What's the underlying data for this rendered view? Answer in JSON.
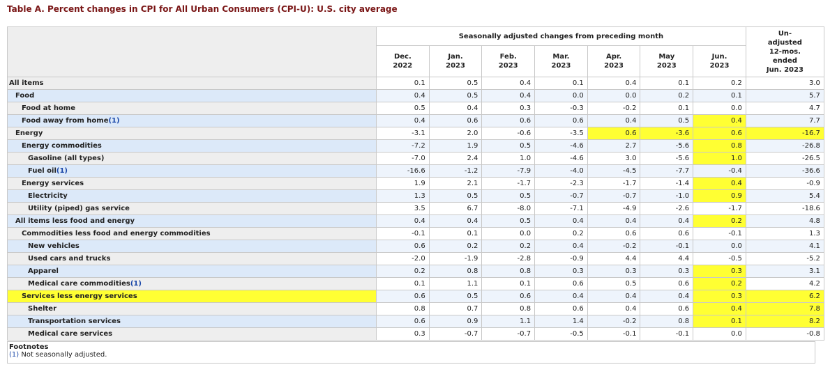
{
  "title": "Table A. Percent changes in CPI for All Urban Consumers (CPI-U): U.S. city average",
  "table": {
    "group_header": "Seasonally adjusted changes from preceding month",
    "columns": [
      {
        "month": "Dec.",
        "year": "2022"
      },
      {
        "month": "Jan.",
        "year": "2023"
      },
      {
        "month": "Feb.",
        "year": "2023"
      },
      {
        "month": "Mar.",
        "year": "2023"
      },
      {
        "month": "Apr.",
        "year": "2023"
      },
      {
        "month": "May",
        "year": "2023"
      },
      {
        "month": "Jun.",
        "year": "2023"
      }
    ],
    "annual_header": [
      "Un-",
      "adjusted",
      "12-mos.",
      "ended",
      "Jun. 2023"
    ],
    "rows": [
      {
        "label": "All items",
        "values": [
          "0.1",
          "0.5",
          "0.4",
          "0.1",
          "0.4",
          "0.1",
          "0.2",
          "3.0"
        ]
      },
      {
        "label": "Food",
        "values": [
          "0.4",
          "0.5",
          "0.4",
          "0.0",
          "0.0",
          "0.2",
          "0.1",
          "5.7"
        ]
      },
      {
        "label": "Food at home",
        "values": [
          "0.5",
          "0.4",
          "0.3",
          "-0.3",
          "-0.2",
          "0.1",
          "0.0",
          "4.7"
        ]
      },
      {
        "label": "Food away from home",
        "note": "(1)",
        "values": [
          "0.4",
          "0.6",
          "0.6",
          "0.6",
          "0.4",
          "0.5",
          "0.4",
          "7.7"
        ]
      },
      {
        "label": "Energy",
        "values": [
          "-3.1",
          "2.0",
          "-0.6",
          "-3.5",
          "0.6",
          "-3.6",
          "0.6",
          "-16.7"
        ]
      },
      {
        "label": "Energy commodities",
        "values": [
          "-7.2",
          "1.9",
          "0.5",
          "-4.6",
          "2.7",
          "-5.6",
          "0.8",
          "-26.8"
        ]
      },
      {
        "label": "Gasoline (all types)",
        "values": [
          "-7.0",
          "2.4",
          "1.0",
          "-4.6",
          "3.0",
          "-5.6",
          "1.0",
          "-26.5"
        ]
      },
      {
        "label": "Fuel oil",
        "note": "(1)",
        "values": [
          "-16.6",
          "-1.2",
          "-7.9",
          "-4.0",
          "-4.5",
          "-7.7",
          "-0.4",
          "-36.6"
        ]
      },
      {
        "label": "Energy services",
        "values": [
          "1.9",
          "2.1",
          "-1.7",
          "-2.3",
          "-1.7",
          "-1.4",
          "0.4",
          "-0.9"
        ]
      },
      {
        "label": "Electricity",
        "values": [
          "1.3",
          "0.5",
          "0.5",
          "-0.7",
          "-0.7",
          "-1.0",
          "0.9",
          "5.4"
        ]
      },
      {
        "label": "Utility (piped) gas service",
        "values": [
          "3.5",
          "6.7",
          "-8.0",
          "-7.1",
          "-4.9",
          "-2.6",
          "-1.7",
          "-18.6"
        ]
      },
      {
        "label": "All items less food and energy",
        "values": [
          "0.4",
          "0.4",
          "0.5",
          "0.4",
          "0.4",
          "0.4",
          "0.2",
          "4.8"
        ]
      },
      {
        "label": "Commodities less food and energy commodities",
        "values": [
          "-0.1",
          "0.1",
          "0.0",
          "0.2",
          "0.6",
          "0.6",
          "-0.1",
          "1.3"
        ]
      },
      {
        "label": "New vehicles",
        "values": [
          "0.6",
          "0.2",
          "0.2",
          "0.4",
          "-0.2",
          "-0.1",
          "0.0",
          "4.1"
        ]
      },
      {
        "label": "Used cars and trucks",
        "values": [
          "-2.0",
          "-1.9",
          "-2.8",
          "-0.9",
          "4.4",
          "4.4",
          "-0.5",
          "-5.2"
        ]
      },
      {
        "label": "Apparel",
        "values": [
          "0.2",
          "0.8",
          "0.8",
          "0.3",
          "0.3",
          "0.3",
          "0.3",
          "3.1"
        ]
      },
      {
        "label": "Medical care commodities",
        "note": "(1)",
        "values": [
          "0.1",
          "1.1",
          "0.1",
          "0.6",
          "0.5",
          "0.6",
          "0.2",
          "4.2"
        ]
      },
      {
        "label": "Services less energy services",
        "values": [
          "0.6",
          "0.5",
          "0.6",
          "0.4",
          "0.4",
          "0.4",
          "0.3",
          "6.2"
        ]
      },
      {
        "label": "Shelter",
        "values": [
          "0.8",
          "0.7",
          "0.8",
          "0.6",
          "0.4",
          "0.6",
          "0.4",
          "7.8"
        ]
      },
      {
        "label": "Transportation services",
        "values": [
          "0.6",
          "0.9",
          "1.1",
          "1.4",
          "-0.2",
          "0.8",
          "0.1",
          "8.2"
        ]
      },
      {
        "label": "Medical care services",
        "values": [
          "0.3",
          "-0.7",
          "-0.7",
          "-0.5",
          "-0.1",
          "-0.1",
          "0.0",
          "-0.8"
        ]
      }
    ]
  },
  "footnotes": {
    "heading": "Footnotes",
    "marker": "(1)",
    "text": "Not seasonally adjusted."
  }
}
